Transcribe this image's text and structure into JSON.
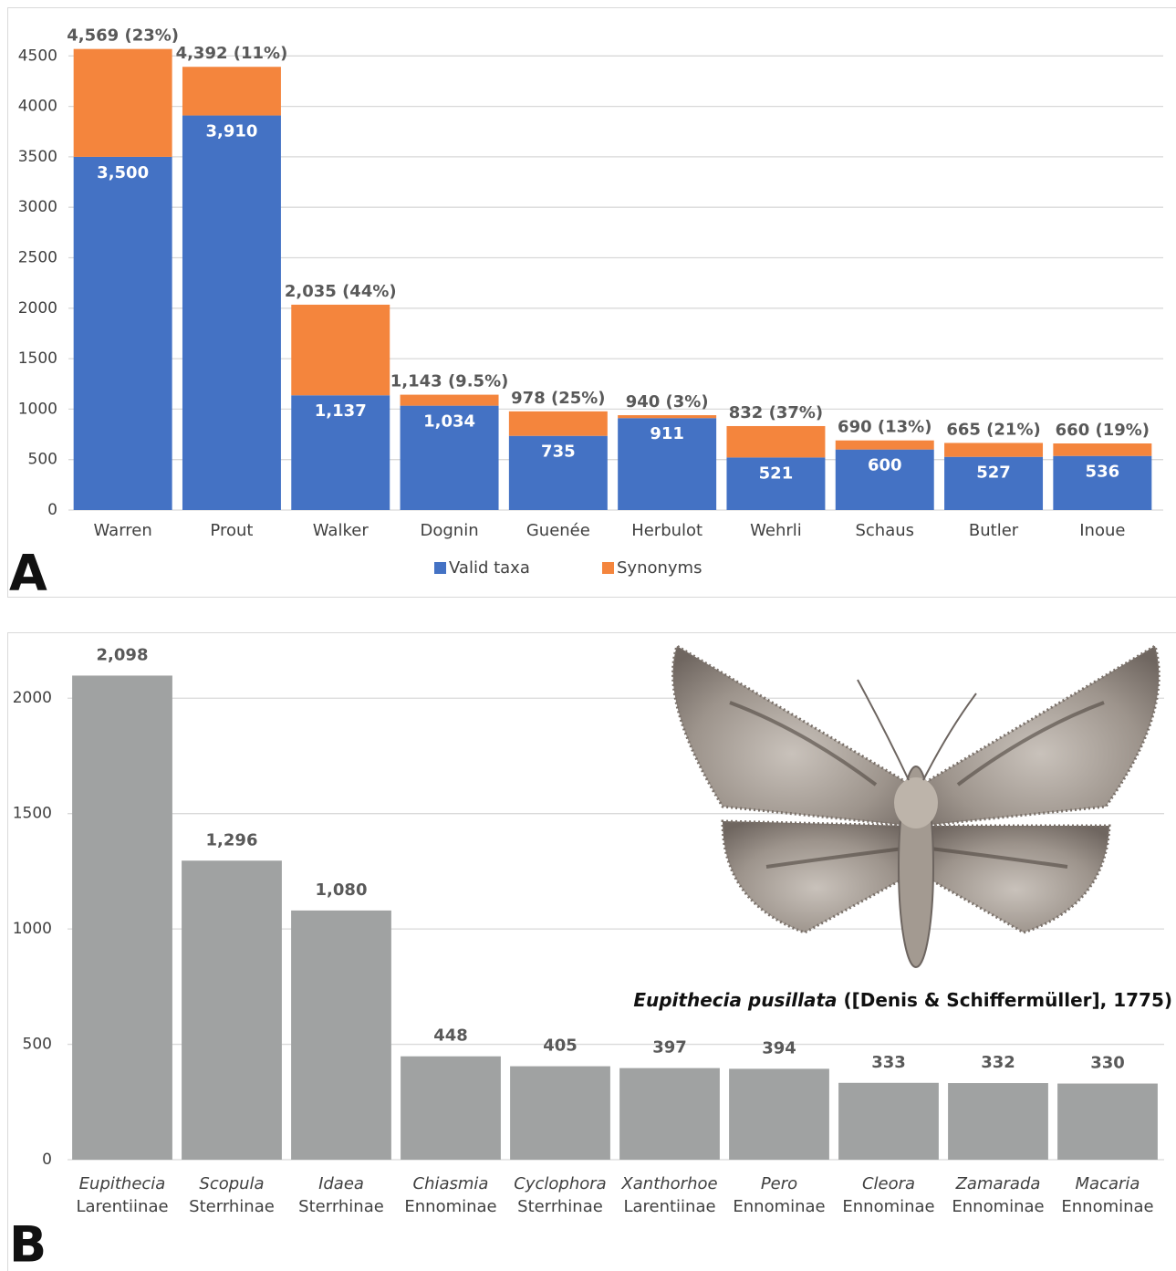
{
  "chart_data": [
    {
      "type": "bar",
      "stacked": true,
      "panel_label": "A",
      "categories": [
        "Warren",
        "Prout",
        "Walker",
        "Dognin",
        "Guenée",
        "Herbulot",
        "Wehrli",
        "Schaus",
        "Butler",
        "Inoue"
      ],
      "series": [
        {
          "name": "Valid taxa",
          "color": "#4472c4",
          "values": [
            3500,
            3910,
            1137,
            1034,
            735,
            911,
            521,
            600,
            527,
            536
          ],
          "value_labels": [
            "3,500",
            "3,910",
            "1,137",
            "1,034",
            "735",
            "911",
            "521",
            "600",
            "527",
            "536"
          ]
        },
        {
          "name": "Synonyms",
          "color": "#f4853d",
          "values": [
            1069,
            482,
            898,
            109,
            243,
            29,
            311,
            90,
            138,
            124
          ]
        }
      ],
      "totals": [
        4569,
        4392,
        2035,
        1143,
        978,
        940,
        832,
        690,
        665,
        660
      ],
      "total_labels": [
        "4,569 (23%)",
        "4,392 (11%)",
        "2,035 (44%)",
        "1,143 (9.5%)",
        "978 (25%)",
        "940 (3%)",
        "832 (37%)",
        "690 (13%)",
        "665 (21%)",
        "660 (19%)"
      ],
      "ylim": [
        0,
        5000
      ],
      "yticks": [
        0,
        500,
        1000,
        1500,
        2000,
        2500,
        3000,
        3500,
        4000,
        4500
      ],
      "grid": true,
      "legend": "bottom"
    },
    {
      "type": "bar",
      "panel_label": "B",
      "categories": [
        "Eupithecia",
        "Scopula",
        "Idaea",
        "Chiasmia",
        "Cyclophora",
        "Xanthorhoe",
        "Pero",
        "Cleora",
        "Zamarada",
        "Macaria"
      ],
      "subfamilies": [
        "Larentiinae",
        "Sterrhinae",
        "Sterrhinae",
        "Ennominae",
        "Sterrhinae",
        "Larentiinae",
        "Ennominae",
        "Ennominae",
        "Ennominae",
        "Ennominae"
      ],
      "values": [
        2098,
        1296,
        1080,
        448,
        405,
        397,
        394,
        333,
        332,
        330
      ],
      "value_labels": [
        "2,098",
        "1,296",
        "1,080",
        "448",
        "405",
        "397",
        "394",
        "333",
        "332",
        "330"
      ],
      "color": "#a0a2a2",
      "ylim": [
        0,
        2250
      ],
      "yticks": [
        0,
        500,
        1000,
        1500,
        2000
      ],
      "grid": true,
      "annotation": {
        "species": "Eupithecia pusillata",
        "authority": " ([Denis & Schiffermüller], 1775)"
      }
    }
  ]
}
